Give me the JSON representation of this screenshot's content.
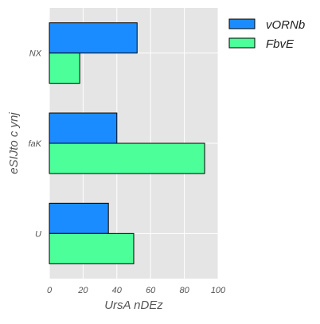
{
  "chart_data": {
    "type": "bar",
    "orientation": "horizontal",
    "title": "",
    "xlabel": "UrsA nDEz",
    "ylabel": "eSIJto c ynj",
    "categories": [
      "NX",
      "faK",
      "U"
    ],
    "series": [
      {
        "name": "vORNb",
        "values": [
          52,
          40,
          35
        ],
        "color": "#1a8cff"
      },
      {
        "name": "FbvE",
        "values": [
          18,
          92,
          50
        ],
        "color": "#4dff99"
      }
    ],
    "xlim": [
      0,
      100
    ],
    "xticks": [
      0,
      20,
      40,
      60,
      80,
      100
    ],
    "grid": true,
    "legend_position": "upper-right-outside",
    "background_color": "#e5e5e5",
    "grid_color": "#ffffff",
    "bar_edge_color": "#000000"
  }
}
